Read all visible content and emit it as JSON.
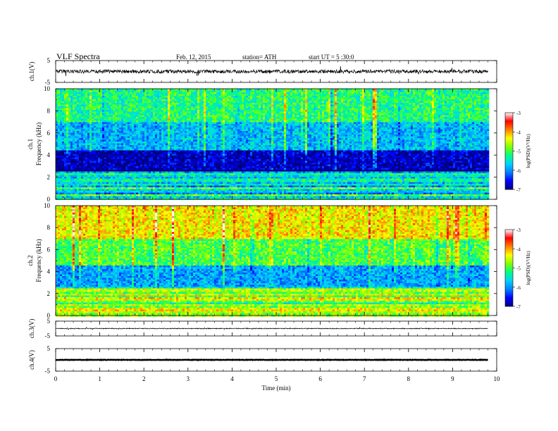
{
  "header": {
    "title": "VLF  Spectra",
    "date": "Feb. 12, 2015",
    "station": "station= ATH",
    "start": "start  UT  =   5  :30:0"
  },
  "chart_data": [
    {
      "type": "line",
      "panel": "ch1-waveform",
      "ylabel": "ch.1(V)",
      "ylim": [
        -5,
        5
      ],
      "yticks": [
        "5",
        "-5"
      ],
      "xlim": [
        0,
        10
      ],
      "data_extent_min": 9.8,
      "series": [
        {
          "values_range": [
            -1.5,
            1.5
          ],
          "mean": 0
        }
      ]
    },
    {
      "type": "heatmap",
      "panel": "ch1-spectrogram",
      "ylabel": "ch.1\nFrequency (kHz)",
      "ylim": [
        0,
        10
      ],
      "yticks": [
        "0",
        "2",
        "4",
        "6",
        "8",
        "10"
      ],
      "xlim": [
        0,
        10
      ],
      "data_extent_min": 9.8,
      "colorbar": {
        "label": "log(PSD)(V²/Hz)",
        "range": [
          -7,
          -3
        ],
        "ticks": [
          "-3",
          "-4",
          "-5",
          "-6",
          "-7"
        ]
      },
      "dominant_levels": [
        {
          "freq_khz": [
            0,
            2.5
          ],
          "log_psd": -5.5,
          "note": "horizontal bands with dark blue, red lines near 0.2 kHz"
        },
        {
          "freq_khz": [
            2.5,
            4.5
          ],
          "log_psd": -6.8,
          "note": "dark blue"
        },
        {
          "freq_khz": [
            4.5,
            7
          ],
          "log_psd": -5.8,
          "note": "blue to cyan"
        },
        {
          "freq_khz": [
            7,
            10
          ],
          "log_psd": -5.2,
          "note": "green with yellow/red sferic spikes"
        }
      ]
    },
    {
      "type": "heatmap",
      "panel": "ch2-spectrogram",
      "ylabel": "ch.2\nFrequency (kHz)",
      "ylim": [
        0,
        10
      ],
      "yticks": [
        "0",
        "2",
        "4",
        "6",
        "8",
        "10"
      ],
      "xlim": [
        0,
        10
      ],
      "data_extent_min": 9.8,
      "colorbar": {
        "label": "log(PSD)(V²/Hz)",
        "range": [
          -7,
          -3
        ],
        "ticks": [
          "-3",
          "-4",
          "-5",
          "-6",
          "-7"
        ]
      },
      "dominant_levels": [
        {
          "freq_khz": [
            0,
            2.5
          ],
          "log_psd": -4.8,
          "note": "horizontal bands, orange/green"
        },
        {
          "freq_khz": [
            2.5,
            4.5
          ],
          "log_psd": -5.9,
          "note": "blue"
        },
        {
          "freq_khz": [
            4.5,
            7
          ],
          "log_psd": -5.0,
          "note": "green"
        },
        {
          "freq_khz": [
            7,
            10
          ],
          "log_psd": -4.3,
          "note": "yellow/orange with red sferics"
        }
      ]
    },
    {
      "type": "line",
      "panel": "ch3-waveform",
      "ylabel": "ch.3(V)",
      "ylim": [
        -5,
        5
      ],
      "yticks": [
        "5",
        "-5"
      ],
      "xlim": [
        0,
        10
      ],
      "data_extent_min": 9.8,
      "series": [
        {
          "values_range": [
            -0.5,
            0.5
          ],
          "mean": 0
        }
      ]
    },
    {
      "type": "line",
      "panel": "ch4-waveform",
      "ylabel": "ch.4(V)",
      "ylim": [
        -5,
        5
      ],
      "yticks": [
        "5",
        "-5"
      ],
      "xlim": [
        0,
        10
      ],
      "xlabel": "Time  (min)",
      "xticks": [
        "0",
        "1",
        "2",
        "3",
        "4",
        "5",
        "6",
        "7",
        "8",
        "9",
        "10"
      ],
      "data_extent_min": 9.8,
      "series": [
        {
          "values_range": [
            -0.3,
            0.3
          ],
          "mean": 0
        }
      ]
    }
  ],
  "colors": {
    "colormap": [
      "#000080",
      "#0000ff",
      "#0080ff",
      "#00d0ff",
      "#00ff80",
      "#80ff00",
      "#ffff00",
      "#ff8000",
      "#ff0000",
      "#ffffff"
    ]
  }
}
